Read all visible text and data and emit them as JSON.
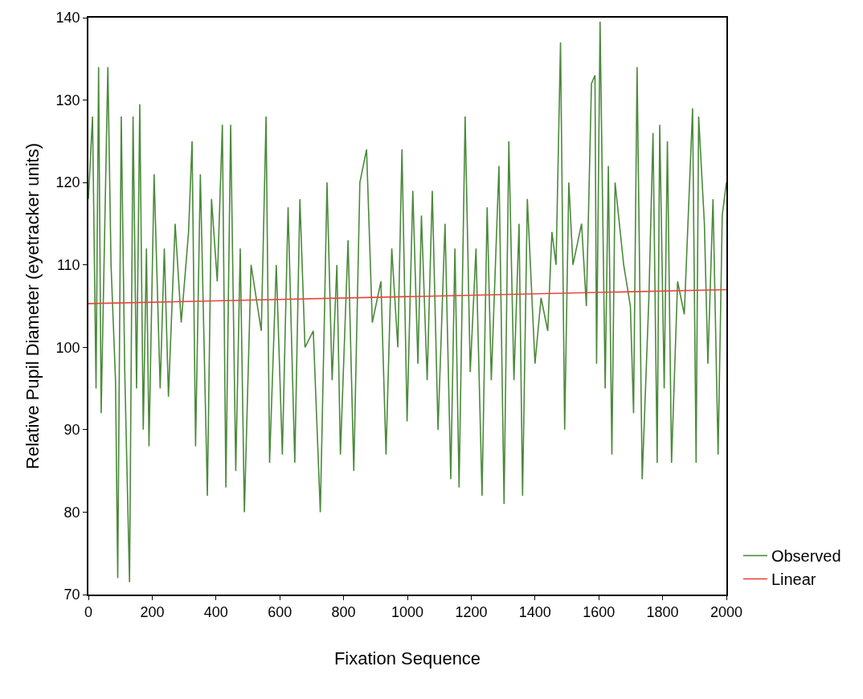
{
  "chart_data": {
    "type": "line",
    "xlabel": "Fixation Sequence",
    "ylabel": "Relative Pupil Diameter (eyetracker units)",
    "xlim": [
      0,
      2000
    ],
    "xticks": [
      0,
      200,
      400,
      600,
      800,
      1000,
      1200,
      1400,
      1600,
      1800,
      2000
    ],
    "ylim": [
      70,
      140
    ],
    "yticks": [
      70,
      80,
      90,
      100,
      110,
      120,
      130,
      140
    ],
    "legend": "bottom right",
    "marker": "none",
    "line_style": "solid",
    "series": [
      {
        "name": "Observed",
        "color": "#4a8a3a",
        "x": [
          0,
          13,
          24,
          32,
          40,
          61,
          71,
          85,
          92,
          103,
          114,
          129,
          140,
          151,
          161,
          172,
          182,
          190,
          206,
          225,
          238,
          251,
          272,
          291,
          314,
          325,
          336,
          351,
          373,
          386,
          404,
          420,
          431,
          446,
          462,
          476,
          489,
          510,
          542,
          557,
          568,
          589,
          608,
          626,
          647,
          663,
          679,
          705,
          727,
          740,
          748,
          764,
          779,
          790,
          814,
          832,
          851,
          872,
          890,
          917,
          933,
          951,
          970,
          983,
          999,
          1017,
          1033,
          1044,
          1062,
          1078,
          1096,
          1118,
          1136,
          1149,
          1162,
          1181,
          1197,
          1215,
          1234,
          1250,
          1263,
          1287,
          1303,
          1318,
          1334,
          1350,
          1361,
          1376,
          1400,
          1419,
          1440,
          1453,
          1466,
          1480,
          1493,
          1506,
          1519,
          1546,
          1561,
          1577,
          1588,
          1593,
          1604,
          1620,
          1630,
          1641,
          1651,
          1678,
          1699,
          1709,
          1720,
          1736,
          1757,
          1770,
          1783,
          1791,
          1805,
          1815,
          1828,
          1847,
          1868,
          1894,
          1905,
          1913,
          1931,
          1942,
          1958,
          1974,
          1987,
          2000
        ],
        "values": [
          118,
          128,
          95,
          134,
          92,
          134,
          110,
          96,
          72,
          128,
          97,
          71.5,
          128,
          95,
          129.5,
          90,
          112,
          88,
          121,
          95,
          112,
          94,
          115,
          103,
          114,
          125,
          88,
          121,
          82,
          118,
          108,
          127,
          83,
          127,
          85,
          112,
          80,
          110,
          102,
          128,
          86,
          110,
          87,
          117,
          86,
          118,
          100,
          102,
          80,
          104,
          120,
          96,
          110,
          87,
          113,
          85,
          120,
          124,
          103,
          108,
          87,
          112,
          100,
          124,
          91,
          119,
          98,
          116,
          96,
          119,
          90,
          115,
          84,
          112,
          83,
          128,
          97,
          112,
          82,
          117,
          96,
          122,
          81,
          125,
          96,
          115,
          82,
          118,
          98,
          106,
          102,
          114,
          110,
          137,
          90,
          120,
          110,
          115,
          105,
          132,
          133,
          98,
          139.5,
          95,
          122,
          87,
          120,
          110,
          105,
          92,
          134,
          84,
          106,
          126,
          86,
          127,
          95,
          125,
          86,
          108,
          104,
          129,
          86,
          128,
          115,
          98,
          118,
          87,
          116,
          120
        ]
      },
      {
        "name": "Linear",
        "color": "#e8463c",
        "x": [
          0,
          2000
        ],
        "values": [
          105.3,
          107.0
        ]
      }
    ]
  }
}
